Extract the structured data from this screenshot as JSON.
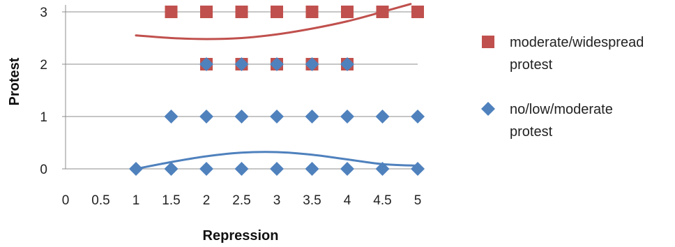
{
  "chart_data": {
    "type": "scatter",
    "xlabel": "Repression",
    "ylabel": "Protest",
    "xlim": [
      0,
      5
    ],
    "ylim": [
      0,
      3
    ],
    "xticks": [
      "0",
      "0.5",
      "1",
      "1.5",
      "2",
      "2.5",
      "3",
      "3.5",
      "4",
      "4.5",
      "5"
    ],
    "yticks": [
      "0",
      "1",
      "2",
      "3"
    ],
    "grid": "horizontal",
    "legend_position": "right",
    "series": [
      {
        "name": "moderate/widespread protest",
        "legend_lines": [
          "moderate/widespread",
          "protest"
        ],
        "marker": "square",
        "color": "#c0504d",
        "points": [
          {
            "x": 1.5,
            "y": 3
          },
          {
            "x": 2,
            "y": 3
          },
          {
            "x": 2.5,
            "y": 3
          },
          {
            "x": 3,
            "y": 3
          },
          {
            "x": 3.5,
            "y": 3
          },
          {
            "x": 4,
            "y": 3
          },
          {
            "x": 4.5,
            "y": 3
          },
          {
            "x": 5,
            "y": 3
          },
          {
            "x": 2,
            "y": 2
          },
          {
            "x": 2.5,
            "y": 2
          },
          {
            "x": 3,
            "y": 2
          },
          {
            "x": 3.5,
            "y": 2
          },
          {
            "x": 4,
            "y": 2
          }
        ],
        "trend": [
          {
            "x": 1,
            "y": 2.55
          },
          {
            "x": 1.5,
            "y": 2.5
          },
          {
            "x": 2,
            "y": 2.48
          },
          {
            "x": 2.5,
            "y": 2.5
          },
          {
            "x": 3,
            "y": 2.57
          },
          {
            "x": 3.5,
            "y": 2.68
          },
          {
            "x": 4,
            "y": 2.82
          },
          {
            "x": 4.5,
            "y": 3.0
          },
          {
            "x": 4.9,
            "y": 3.15
          }
        ]
      },
      {
        "name": "no/low/moderate protest",
        "legend_lines": [
          "no/low/moderate",
          "protest"
        ],
        "marker": "diamond",
        "color": "#4f81bd",
        "points": [
          {
            "x": 1,
            "y": 0
          },
          {
            "x": 1.5,
            "y": 0
          },
          {
            "x": 2,
            "y": 0
          },
          {
            "x": 2.5,
            "y": 0
          },
          {
            "x": 3,
            "y": 0
          },
          {
            "x": 3.5,
            "y": 0
          },
          {
            "x": 4,
            "y": 0
          },
          {
            "x": 4.5,
            "y": 0
          },
          {
            "x": 5,
            "y": 0
          },
          {
            "x": 1.5,
            "y": 1
          },
          {
            "x": 2,
            "y": 1
          },
          {
            "x": 2.5,
            "y": 1
          },
          {
            "x": 3,
            "y": 1
          },
          {
            "x": 3.5,
            "y": 1
          },
          {
            "x": 4,
            "y": 1
          },
          {
            "x": 4.5,
            "y": 1
          },
          {
            "x": 5,
            "y": 1
          },
          {
            "x": 2,
            "y": 2
          },
          {
            "x": 2.5,
            "y": 2
          },
          {
            "x": 3,
            "y": 2
          },
          {
            "x": 3.5,
            "y": 2
          },
          {
            "x": 4,
            "y": 2
          }
        ],
        "trend": [
          {
            "x": 1,
            "y": 0
          },
          {
            "x": 1.5,
            "y": 0.13
          },
          {
            "x": 2,
            "y": 0.24
          },
          {
            "x": 2.5,
            "y": 0.31
          },
          {
            "x": 3,
            "y": 0.32
          },
          {
            "x": 3.5,
            "y": 0.27
          },
          {
            "x": 4,
            "y": 0.18
          },
          {
            "x": 4.5,
            "y": 0.09
          },
          {
            "x": 5,
            "y": 0.06
          }
        ]
      }
    ]
  }
}
